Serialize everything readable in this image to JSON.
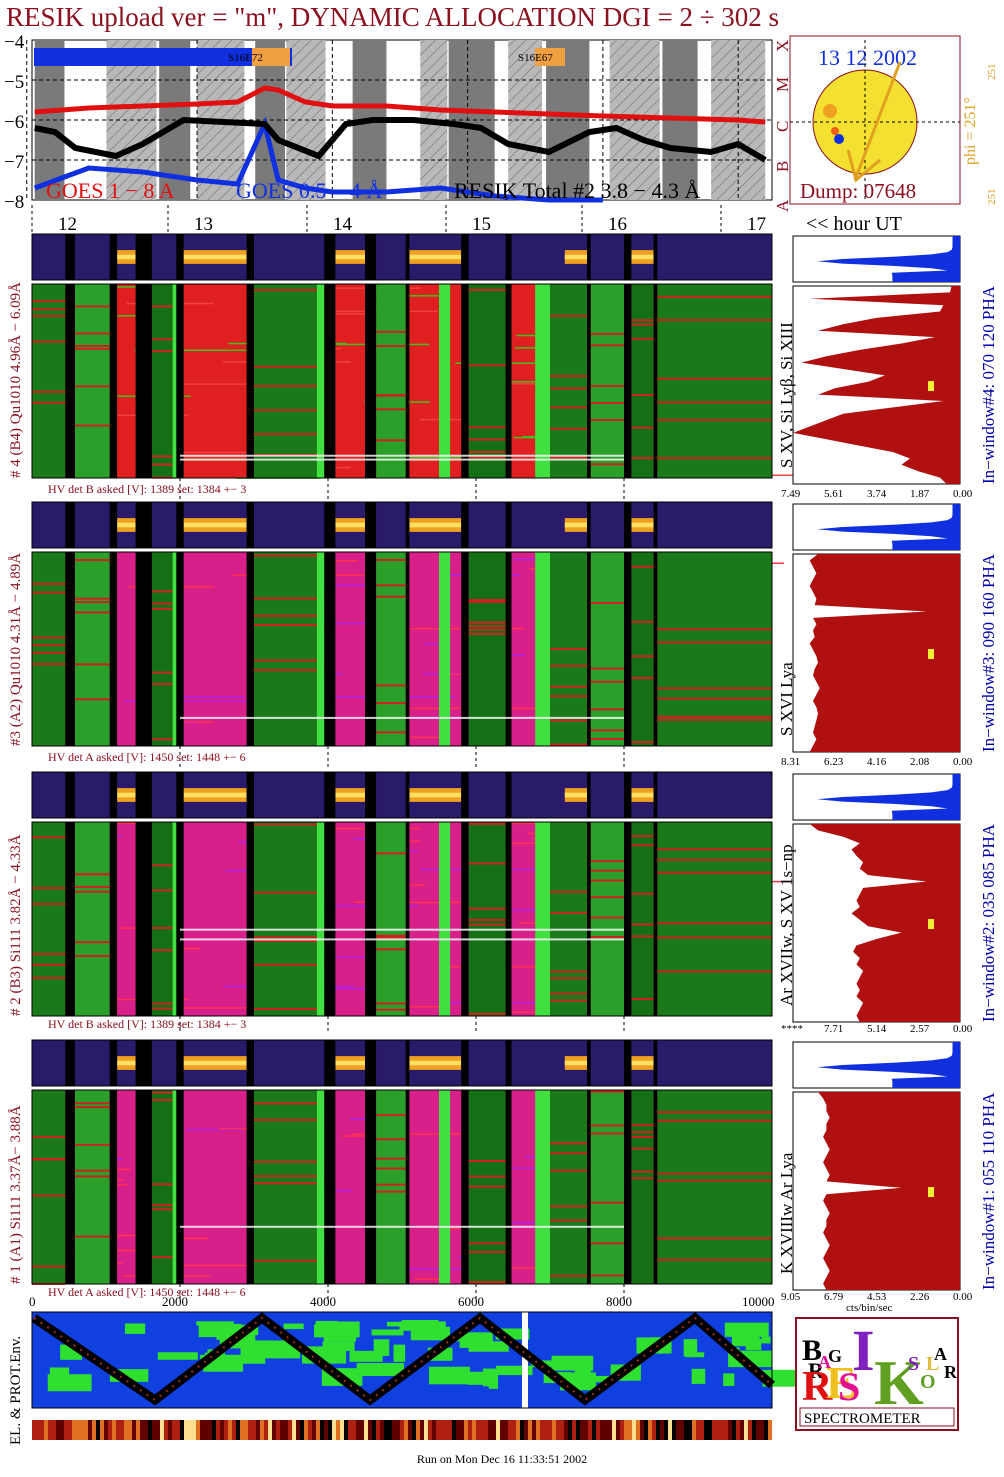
{
  "title": "RESIK upload ver = \"m\", DYNAMIC ALLOCATION  DGI =   2 ÷ 302 s",
  "footer": "Run on Mon Dec 16 11:33:51 2002",
  "colors": {
    "title": "#8b1020",
    "goes_long": "#e01010",
    "goes_short": "#1030e0",
    "resik_total": "#000000",
    "night_shade": "#7a7a7a",
    "spectrum_fill": "#b01010",
    "spectrum_blue": "#1030e0",
    "sun_disk": "#f4e030",
    "window_label": "#0000aa",
    "gold": "#e0a020"
  },
  "lightcurve": {
    "y_ticks": [
      "−4",
      "−5",
      "−6",
      "−7",
      "−8"
    ],
    "class_letters": [
      "X",
      "M",
      "C",
      "B",
      "A"
    ],
    "legend_goes_long": "GOES 1 − 8 A",
    "legend_goes_short": "GOES 0.5 − 4 Å",
    "legend_resik": "RESIK Total #2  3.8 − 4.3 Å",
    "markers": [
      "S16E72",
      "S16E67"
    ]
  },
  "chart_data": [
    {
      "type": "line",
      "title": "",
      "xlabel": "hour UT",
      "ylabel": "",
      "x_ticks": [
        "12",
        "13",
        "14",
        "15",
        "16",
        "17"
      ],
      "x_unit_label": "<< hour UT",
      "ylim": [
        -8,
        -4
      ],
      "yscale": "log10 flux",
      "grid": true,
      "series": [
        {
          "name": "GOES 1 − 8 A",
          "x": [
            11.8,
            12.2,
            12.6,
            13.0,
            13.3,
            13.5,
            13.6,
            13.8,
            14.0,
            14.4,
            14.8,
            15.2,
            15.6,
            16.0,
            16.5,
            17.0,
            17.2
          ],
          "values": [
            -5.8,
            -5.7,
            -5.65,
            -5.6,
            -5.55,
            -5.2,
            -5.25,
            -5.55,
            -5.65,
            -5.65,
            -5.75,
            -5.8,
            -5.85,
            -5.9,
            -5.95,
            -6.0,
            -6.05
          ]
        },
        {
          "name": "GOES 0.5 − 4 Å",
          "x": [
            11.8,
            12.2,
            12.6,
            13.0,
            13.3,
            13.5,
            13.6,
            13.8,
            14.0,
            14.4,
            14.8,
            15.2,
            15.6,
            16.0
          ],
          "values": [
            -7.7,
            -7.2,
            -7.3,
            -7.5,
            -7.6,
            -6.1,
            -7.5,
            -7.7,
            -7.8,
            -7.8,
            -7.7,
            -7.9,
            -8.0,
            -8.0
          ]
        },
        {
          "name": "RESIK Total #2  3.8 − 4.3 Å",
          "x": [
            11.8,
            11.95,
            12.1,
            12.4,
            12.6,
            12.9,
            13.2,
            13.5,
            13.6,
            13.9,
            14.1,
            14.3,
            14.6,
            14.9,
            15.1,
            15.3,
            15.6,
            15.9,
            16.1,
            16.3,
            16.5,
            16.8,
            17.0,
            17.2
          ],
          "values": [
            -6.2,
            -6.3,
            -6.7,
            -6.9,
            -6.6,
            -6.0,
            -6.05,
            -6.1,
            -6.5,
            -6.9,
            -6.1,
            -6.0,
            -6.0,
            -6.1,
            -6.2,
            -6.6,
            -6.8,
            -6.3,
            -6.2,
            -6.5,
            -6.7,
            -6.8,
            -6.6,
            -7.0
          ]
        }
      ]
    },
    {
      "type": "heatmap",
      "title": "",
      "note": "four detector spectrogram panels vs time, x axis pixel index",
      "x_ticks": [
        "0",
        "2000",
        "4000",
        "6000",
        "8000",
        "10000"
      ]
    }
  ],
  "sun_panel": {
    "date": "13 12 2002",
    "phi_label": "phi = 251°",
    "phi_top": "251",
    "phi_bottom": "251",
    "dump": "Dump: 07648"
  },
  "detectors": [
    {
      "left_label": "# 4 (B4) Qu1010 4.96Å − 6.09Å",
      "right_label": "In−window#4:  070 120 PHA",
      "line_label": "S XV, Si Lyβ, Si XIII",
      "hv": "HV det B asked [V]:  1389 set:  1384 +−    3",
      "pha_ticks": [
        "7.49",
        "5.61",
        "3.74",
        "1.87",
        "0.00"
      ],
      "spectrum_profile": [
        0.05,
        0.06,
        0.9,
        0.1,
        0.12,
        0.5,
        0.7,
        0.85,
        0.15,
        0.35,
        0.6,
        0.8,
        0.95,
        0.7,
        0.45,
        0.55,
        0.75,
        0.85,
        0.1,
        0.4,
        0.7,
        0.8,
        0.9,
        1.0,
        0.8,
        0.6,
        0.4,
        0.3,
        0.35,
        0.25,
        0.12,
        0.08
      ]
    },
    {
      "left_label": "#3 (A2) Qu1010  4.31Å − 4.89Å",
      "right_label": "In−window#3:  090 160 PHA",
      "line_label": "S XVI Lya",
      "hv": "HV det A asked [V]:  1450 set:  1448 +−    6",
      "pha_ticks": [
        "8.31",
        "6.23",
        "4.16",
        "2.08",
        "0.00"
      ],
      "spectrum_profile": [
        0.85,
        0.9,
        0.88,
        0.86,
        0.88,
        0.9,
        0.88,
        0.86,
        0.87,
        0.2,
        0.88,
        0.86,
        0.88,
        0.87,
        0.9,
        0.88,
        0.86,
        0.85,
        0.87,
        0.88,
        0.86,
        0.84,
        0.86,
        0.88,
        0.86,
        0.85,
        0.86,
        0.87,
        0.88,
        0.86,
        0.88,
        0.9
      ]
    },
    {
      "left_label": "# 2 (B3) Si111  3.82Å − 4.33Å",
      "right_label": "In−window#2:  035 085 PHA",
      "line_label": "Ar XVIIw,  S XV 1s−np",
      "hv": "HV det B asked [V]:  1389 set:  1384 +−    3",
      "pha_ticks": [
        "****",
        "7.71",
        "5.14",
        "2.57",
        "0.00"
      ],
      "spectrum_profile": [
        0.9,
        0.85,
        0.7,
        0.6,
        0.65,
        0.62,
        0.58,
        0.6,
        0.55,
        0.2,
        0.58,
        0.6,
        0.62,
        0.6,
        0.65,
        0.6,
        0.55,
        0.35,
        0.5,
        0.62,
        0.64,
        0.6,
        0.62,
        0.58,
        0.6,
        0.62,
        0.6,
        0.62,
        0.58,
        0.6,
        0.62,
        0.6
      ]
    },
    {
      "left_label": "# 1 (A1) Si111  3.37Å− 3.88Å",
      "right_label": "In−window#1:  055 110 PHA",
      "line_label": "K XVIIIw  Ar Lya",
      "hv": "HV det A asked [V]:  1450 set:  1448 +−    6",
      "pha_ticks": [
        "9.05",
        "6.79",
        "4.53",
        "2.26",
        "0.00"
      ],
      "pha_axis_label": "cts/bin/sec",
      "spectrum_profile": [
        0.85,
        0.82,
        0.8,
        0.8,
        0.78,
        0.8,
        0.8,
        0.82,
        0.8,
        0.78,
        0.8,
        0.82,
        0.8,
        0.78,
        0.8,
        0.35,
        0.8,
        0.82,
        0.8,
        0.78,
        0.8,
        0.8,
        0.82,
        0.8,
        0.78,
        0.8,
        0.82,
        0.8,
        0.78,
        0.8,
        0.82,
        0.8
      ]
    }
  ],
  "env_label": "EL. & PROT.Env.",
  "logo": {
    "letters": [
      "B",
      "R",
      "A",
      "G",
      "R",
      "E",
      "S",
      "I",
      "K",
      "S",
      "O",
      "L",
      "A",
      "R"
    ],
    "caption": "SPECTROMETER"
  }
}
